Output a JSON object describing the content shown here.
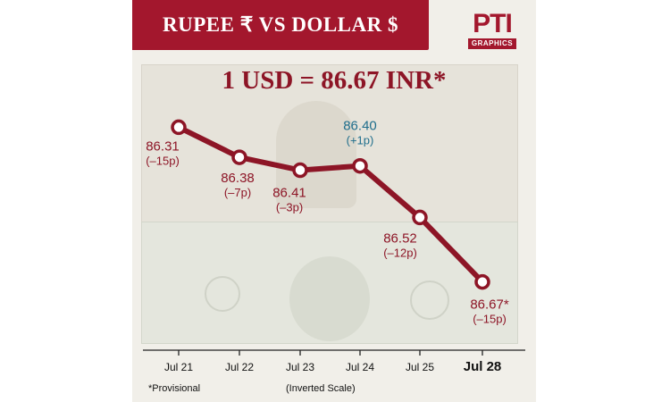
{
  "header": {
    "title": "RUPEE ₹   VS   DOLLAR $"
  },
  "logo": {
    "mark": "PTI",
    "sub": "GRAPHICS"
  },
  "headline": "1 USD = 86.67 INR*",
  "footnote": "*Provisional",
  "scale_note": "(Inverted Scale)",
  "colors": {
    "accent": "#a3172d",
    "line": "#8d1526",
    "gain": "#1f6e8c"
  },
  "chart_data": {
    "type": "line",
    "title": "",
    "xlabel": "",
    "ylabel": "",
    "inverted_y": true,
    "ylim": [
      86.28,
      86.7
    ],
    "categories": [
      "Jul 21",
      "Jul 22",
      "Jul 23",
      "Jul 24",
      "Jul 25",
      "Jul 28"
    ],
    "series": [
      {
        "values": [
          86.31,
          86.38,
          86.41,
          86.4,
          86.52,
          86.67
        ],
        "value_labels": [
          "86.31",
          "86.38",
          "86.41",
          "86.40",
          "86.52",
          "86.67*"
        ],
        "change_labels": [
          "(–15p)",
          "(–7p)",
          "(–3p)",
          "(+1p)",
          "(–12p)",
          "(–15p)"
        ]
      }
    ],
    "grid": false,
    "legend": "none"
  }
}
